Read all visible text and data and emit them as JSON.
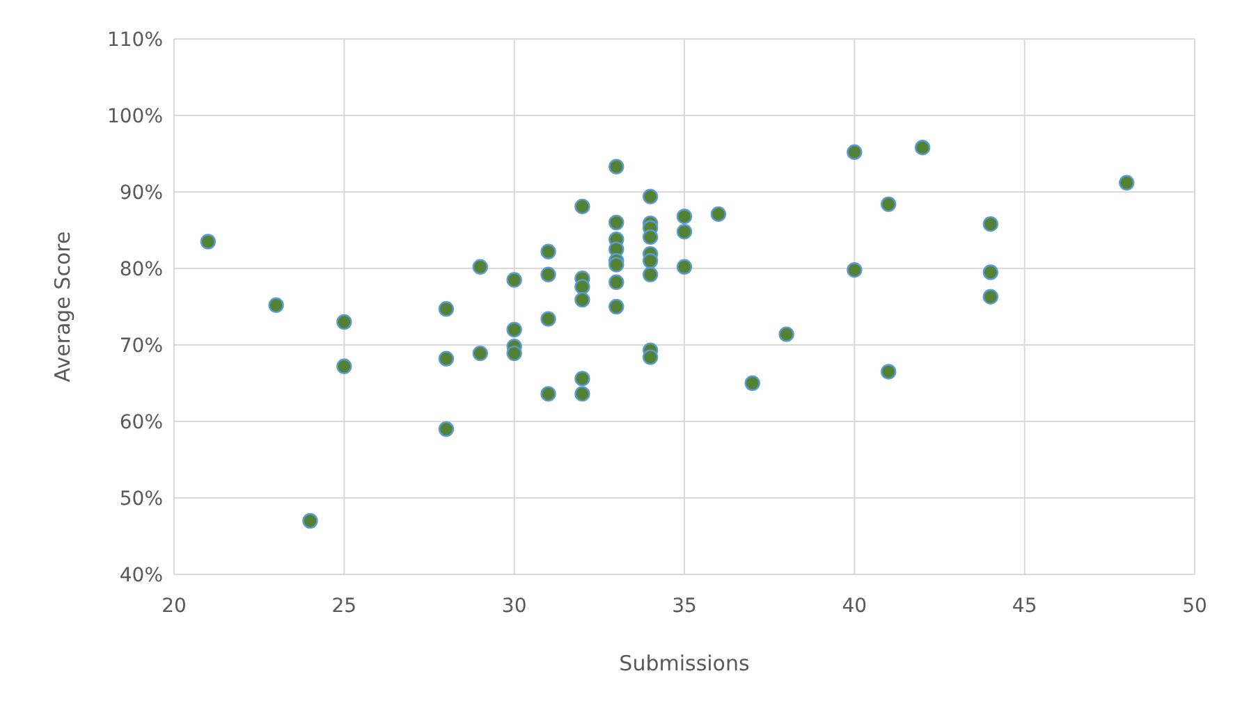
{
  "chart_data": {
    "type": "scatter",
    "xlabel": "Submissions",
    "ylabel": "Average Score",
    "marker": "circle",
    "grid": true,
    "xlim": [
      20,
      50
    ],
    "xticks": [
      20,
      25,
      30,
      35,
      40,
      45,
      50
    ],
    "ylim": [
      40,
      110
    ],
    "yticks": [
      {
        "value": 40,
        "label": "40%"
      },
      {
        "value": 50,
        "label": "50%"
      },
      {
        "value": 60,
        "label": "60%"
      },
      {
        "value": 70,
        "label": "70%"
      },
      {
        "value": 80,
        "label": "80%"
      },
      {
        "value": 90,
        "label": "90%"
      },
      {
        "value": 100,
        "label": "100%"
      },
      {
        "value": 110,
        "label": "110%"
      }
    ],
    "series": [
      {
        "color": "#548235",
        "x": [
          21,
          23,
          24,
          25,
          25,
          28,
          28,
          28,
          29,
          29,
          30,
          30,
          30,
          30,
          31,
          31,
          31,
          31,
          32,
          32,
          32,
          32,
          32,
          32,
          33,
          33,
          33,
          33,
          33,
          33,
          33,
          33,
          34,
          34,
          34,
          34,
          34,
          34,
          34,
          34,
          34,
          35,
          35,
          35,
          36,
          37,
          38,
          40,
          40,
          41,
          41,
          42,
          44,
          44,
          44,
          48
        ],
        "values": [
          83.5,
          75.2,
          47,
          73,
          67.2,
          74.7,
          68.2,
          59,
          80.2,
          68.9,
          78.5,
          72,
          69.8,
          68.9,
          82.2,
          79.2,
          73.4,
          63.6,
          88.1,
          78.7,
          77.6,
          75.9,
          65.6,
          63.6,
          93.3,
          86,
          83.8,
          82.5,
          81,
          80.5,
          78.2,
          75,
          89.4,
          85.9,
          85.3,
          84.1,
          81.9,
          81,
          79.2,
          69.3,
          68.4,
          86.8,
          84.8,
          80.2,
          87.1,
          65,
          71.4,
          95.2,
          79.8,
          88.4,
          66.5,
          95.8,
          85.8,
          79.5,
          76.3,
          91.2
        ]
      }
    ]
  }
}
